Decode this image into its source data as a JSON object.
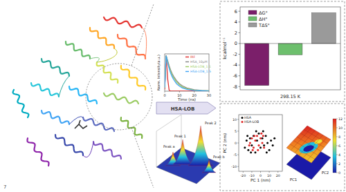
{
  "page_number": "7",
  "arrow_label": "HSA-LOB",
  "fluorescence_3d": {
    "peaks": [
      "Peak a",
      "Peak 1",
      "Peak 2",
      "Peak b"
    ]
  },
  "chart_data": [
    {
      "type": "line",
      "xlabel": "Time (ns)",
      "ylabel": "Norm. Intensity(a.u.)",
      "x": [
        0,
        1,
        2,
        3,
        4,
        5,
        6,
        8,
        10,
        12,
        15,
        20,
        25,
        30
      ],
      "series": [
        {
          "name": "IRF",
          "color": "#e03030",
          "values": [
            0.05,
            1.0,
            0.35,
            0.03,
            0,
            0,
            0,
            0,
            0,
            0,
            0,
            0,
            0,
            0
          ]
        },
        {
          "name": "HSA_10μM",
          "color": "#8a8a8a",
          "values": [
            0.1,
            1.0,
            0.86,
            0.72,
            0.6,
            0.5,
            0.42,
            0.3,
            0.21,
            0.15,
            0.09,
            0.04,
            0.02,
            0.01
          ]
        },
        {
          "name": "HSA-LOB_1:1",
          "color": "#9ccc65",
          "values": [
            0.1,
            1.0,
            0.83,
            0.68,
            0.56,
            0.46,
            0.38,
            0.26,
            0.18,
            0.12,
            0.07,
            0.03,
            0.01,
            0.01
          ]
        },
        {
          "name": "HSA-LOB_1:5",
          "color": "#42a5f5",
          "values": [
            0.1,
            1.0,
            0.8,
            0.64,
            0.51,
            0.41,
            0.33,
            0.21,
            0.14,
            0.09,
            0.05,
            0.02,
            0.01,
            0.0
          ]
        }
      ],
      "xlim": [
        0,
        30
      ],
      "xticks": [
        0,
        10,
        20,
        30
      ],
      "ylim": [
        0,
        1.05
      ],
      "tick_labels": "x",
      "legend": "top-right"
    },
    {
      "type": "bar",
      "xlabel": "298.15 K",
      "ylabel": "kcalmol⁻¹",
      "categories": [
        "ΔG°",
        "ΔH°",
        "TΔS°"
      ],
      "values": [
        -7.8,
        -2.1,
        5.7
      ],
      "colors": [
        "#7b1f6a",
        "#6dbf6d",
        "#9a9a9a"
      ],
      "ylim": [
        -8.6,
        6.8
      ],
      "yticks": [
        -8,
        -6,
        -4,
        -2,
        0,
        2,
        4,
        6
      ],
      "tick_labels": "y",
      "legend": "top-left"
    },
    {
      "type": "scatter",
      "xlabel": "PC 1 (nm)",
      "ylabel": "PC 2 (nm)",
      "series": [
        {
          "name": "HSA",
          "color": "#000000",
          "x": [
            -18,
            -16,
            -14,
            -12,
            -10,
            -8,
            -6,
            -4,
            -2,
            0,
            2,
            4,
            6,
            8,
            10,
            12,
            14,
            -11,
            -5,
            3,
            7,
            -15,
            16
          ],
          "values": [
            -2,
            1,
            -3,
            2,
            -1,
            3,
            -4,
            1,
            4,
            -2,
            2,
            -1,
            3,
            0,
            -3,
            1,
            -1,
            -4,
            5,
            5,
            -4,
            3,
            2
          ]
        },
        {
          "name": "HSA-LOB",
          "color": "#e02020",
          "x": [
            -12,
            -10,
            -8,
            -6,
            -4,
            -2,
            0,
            2,
            4,
            -9,
            -3,
            1,
            -7,
            3,
            -13
          ],
          "values": [
            0,
            2,
            -2,
            1,
            3,
            -1,
            2,
            0,
            -2,
            -3,
            -3,
            4,
            3,
            3,
            -1
          ]
        }
      ],
      "xlim": [
        -25,
        25
      ],
      "xticks": [
        -20,
        -10,
        0,
        10,
        20
      ],
      "ylim": [
        -12,
        12
      ],
      "yticks": [
        -10,
        -5,
        0,
        5,
        10
      ],
      "legend": "top-left"
    },
    {
      "type": "surface",
      "xlabel": "PC1",
      "ylabel": "PC2",
      "colorbar": {
        "range": [
          0,
          12
        ],
        "ticks": [
          0,
          2,
          4,
          6,
          8,
          10,
          12
        ]
      }
    }
  ]
}
